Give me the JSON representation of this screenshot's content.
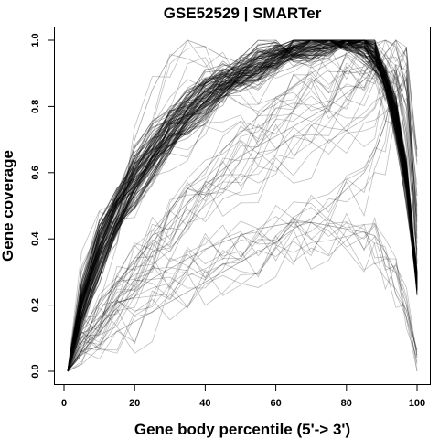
{
  "chart_data": {
    "type": "line",
    "title": "GSE52529 | SMARTer",
    "xlabel": "Gene body percentile (5'-> 3')",
    "ylabel": "Gene coverage",
    "xlim": [
      0,
      100
    ],
    "ylim": [
      0,
      1
    ],
    "xticks": [
      0,
      20,
      40,
      60,
      80,
      100
    ],
    "yticks": [
      0.0,
      0.2,
      0.4,
      0.6,
      0.8,
      1.0
    ],
    "xtick_labels": [
      "0",
      "20",
      "40",
      "60",
      "80",
      "100"
    ],
    "ytick_labels": [
      "0.0",
      "0.2",
      "0.4",
      "0.6",
      "0.8",
      "1.0"
    ],
    "grid": false,
    "legend": "none",
    "line_color": "#000000",
    "line_alpha": 0.25,
    "series_count": 150,
    "x": [
      1,
      5,
      10,
      15,
      20,
      25,
      30,
      35,
      40,
      45,
      50,
      55,
      60,
      65,
      70,
      75,
      80,
      85,
      88,
      91,
      94,
      97,
      100
    ],
    "series": [
      {
        "values": [
          0.0,
          0.2,
          0.37,
          0.49,
          0.59,
          0.66,
          0.73,
          0.78,
          0.83,
          0.87,
          0.9,
          0.93,
          0.95,
          0.97,
          0.98,
          0.99,
          1.0,
          1.0,
          0.97,
          0.9,
          0.78,
          0.6,
          0.28
        ]
      },
      {
        "values": [
          0.0,
          0.17,
          0.32,
          0.44,
          0.54,
          0.62,
          0.69,
          0.75,
          0.8,
          0.84,
          0.88,
          0.91,
          0.94,
          0.96,
          0.98,
          0.99,
          1.0,
          0.99,
          0.96,
          0.88,
          0.76,
          0.58,
          0.27
        ]
      },
      {
        "values": [
          0.0,
          0.23,
          0.41,
          0.53,
          0.63,
          0.7,
          0.77,
          0.82,
          0.86,
          0.9,
          0.92,
          0.95,
          0.97,
          0.98,
          0.99,
          1.0,
          1.0,
          0.98,
          0.95,
          0.86,
          0.73,
          0.55,
          0.25
        ]
      },
      {
        "values": [
          0.0,
          0.1,
          0.18,
          0.26,
          0.34,
          0.41,
          0.48,
          0.55,
          0.61,
          0.67,
          0.72,
          0.77,
          0.82,
          0.86,
          0.9,
          0.93,
          0.96,
          0.98,
          0.99,
          1.0,
          0.98,
          0.85,
          0.5
        ]
      },
      {
        "values": [
          0.0,
          0.05,
          0.08,
          0.12,
          0.15,
          0.18,
          0.21,
          0.24,
          0.27,
          0.3,
          0.33,
          0.36,
          0.39,
          0.43,
          0.46,
          0.5,
          0.55,
          0.6,
          0.66,
          0.75,
          0.9,
          0.98,
          0.4
        ]
      },
      {
        "values": [
          0.0,
          0.08,
          0.14,
          0.19,
          0.24,
          0.28,
          0.31,
          0.34,
          0.37,
          0.39,
          0.41,
          0.43,
          0.44,
          0.45,
          0.45,
          0.44,
          0.43,
          0.42,
          0.41,
          0.36,
          0.3,
          0.2,
          0.05
        ]
      },
      {
        "values": [
          0.0,
          0.12,
          0.2,
          0.27,
          0.33,
          0.39,
          0.45,
          0.51,
          0.56,
          0.61,
          0.65,
          0.68,
          0.71,
          0.74,
          0.77,
          0.8,
          0.84,
          0.88,
          0.92,
          0.96,
          1.0,
          0.95,
          0.65
        ]
      },
      {
        "values": [
          0.0,
          0.3,
          0.45,
          0.55,
          0.62,
          0.68,
          0.73,
          0.77,
          0.8,
          0.83,
          0.86,
          0.88,
          0.9,
          0.92,
          0.94,
          0.96,
          0.98,
          1.0,
          0.99,
          0.95,
          0.88,
          0.72,
          0.35
        ]
      },
      {
        "values": [
          0.0,
          0.15,
          0.3,
          0.45,
          0.7,
          0.85,
          0.95,
          1.0,
          0.98,
          0.95,
          0.93,
          0.92,
          0.93,
          0.95,
          0.97,
          0.98,
          0.99,
          1.0,
          0.98,
          0.92,
          0.82,
          0.62,
          0.3
        ]
      }
    ]
  }
}
